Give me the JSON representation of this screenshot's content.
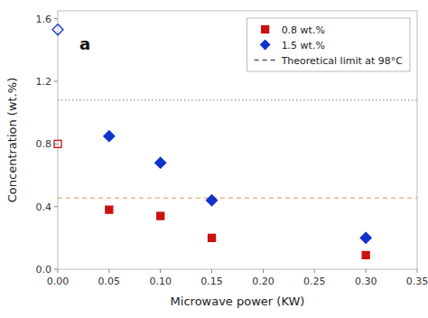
{
  "chart_data": {
    "type": "scatter",
    "x_label": "Microwave power (KW)",
    "y_label": "Concentration (wt.%)",
    "series": [
      {
        "name": "0.8 wt.%",
        "color": "#cc1111",
        "marker": "square",
        "x": [
          0,
          0.05,
          0.1,
          0.15,
          0.3
        ],
        "values": [
          0.8,
          0.38,
          0.34,
          0.2,
          0.09
        ]
      },
      {
        "name": "1.5 wt.%",
        "color": "#1133cc",
        "marker": "diamond",
        "x": [
          0,
          0.05,
          0.1,
          0.15,
          0.3
        ],
        "values": [
          1.53,
          0.85,
          0.68,
          0.44,
          0.2
        ]
      }
    ],
    "reference_lines": [
      {
        "y": 1.08,
        "color": "#8899aa",
        "line_style": "dotted"
      },
      {
        "y": 0.455,
        "color": "#ddaa77",
        "line_style": "dashed"
      }
    ],
    "reference_legend": {
      "name": "Theoretical limit at 98°C",
      "color": "#555555",
      "line_style": "dashed"
    },
    "annotations": [
      {
        "text": "a"
      }
    ],
    "xlim": [
      0,
      0.35
    ],
    "ylim": [
      0,
      1.65
    ],
    "xticks": [
      {
        "value": 0,
        "label": "0.00"
      },
      0.05,
      {
        "value": 0.1,
        "label": "0.10"
      },
      0.15,
      {
        "value": 0.2,
        "label": "0.20"
      },
      0.25,
      {
        "value": 0.3,
        "label": "0.30"
      },
      0.35
    ],
    "yticks": [
      {
        "value": 0,
        "label": "0.0"
      },
      0.4,
      0.8,
      1.2,
      1.6
    ],
    "grid": false,
    "legend": "upper right"
  }
}
